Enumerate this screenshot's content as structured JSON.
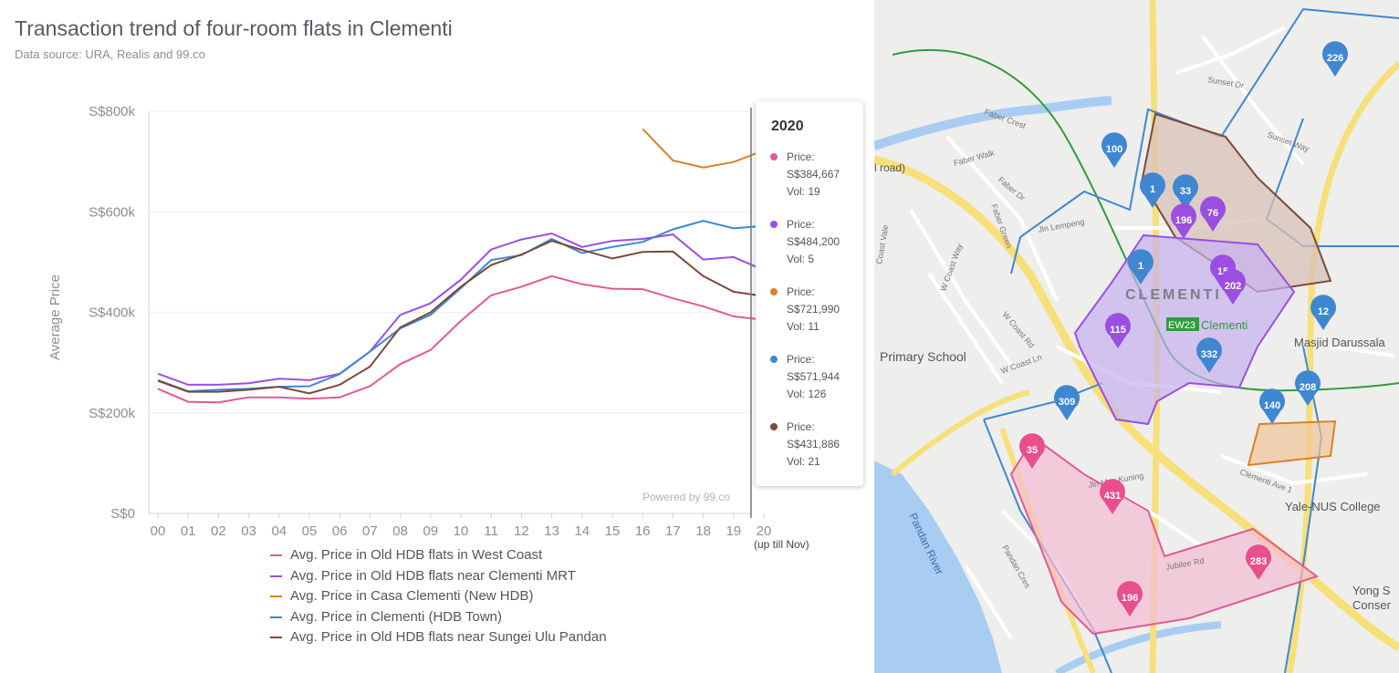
{
  "title": "Transaction trend of four-room flats in Clementi",
  "subtitle": "Data source: URA, Realis and 99.co",
  "chart_data": {
    "type": "line",
    "ylabel": "Average Price",
    "ylim": [
      0,
      800000
    ],
    "y_ticks": [
      "S$0",
      "S$200k",
      "S$400k",
      "S$600k",
      "S$800k"
    ],
    "y_tick_values": [
      0,
      200000,
      400000,
      600000,
      800000
    ],
    "categories": [
      "00",
      "01",
      "02",
      "03",
      "04",
      "05",
      "06",
      "07",
      "08",
      "09",
      "10",
      "11",
      "12",
      "13",
      "14",
      "15",
      "16",
      "17",
      "18",
      "19",
      "20"
    ],
    "x_extra_label": "(up till Nov)",
    "series": [
      {
        "name": "Avg. Price in Old HDB flats in West Coast",
        "color": "#e05a95",
        "values": [
          248000,
          222000,
          221000,
          231000,
          231000,
          228000,
          231000,
          253000,
          297000,
          325000,
          383000,
          434000,
          451000,
          472000,
          456000,
          447000,
          446000,
          428000,
          412000,
          392000,
          385000
        ]
      },
      {
        "name": "Avg. Price in Old HDB flats near Clementi MRT",
        "color": "#9b4fe0",
        "values": [
          278000,
          256000,
          256000,
          259000,
          268000,
          265000,
          278000,
          322000,
          395000,
          418000,
          465000,
          525000,
          545000,
          557000,
          530000,
          542000,
          546000,
          555000,
          505000,
          510000,
          484000
        ]
      },
      {
        "name": "Avg. Price in Casa Clementi (New HDB)",
        "color": "#d98029",
        "values": [
          null,
          null,
          null,
          null,
          null,
          null,
          null,
          null,
          null,
          null,
          null,
          null,
          null,
          null,
          null,
          null,
          765000,
          702000,
          688000,
          699000,
          722000
        ]
      },
      {
        "name": "Avg. Price in Clementi (HDB Town)",
        "color": "#3f87d1",
        "values": [
          265000,
          243000,
          246000,
          248000,
          252000,
          253000,
          277000,
          322000,
          368000,
          395000,
          448000,
          504000,
          514000,
          546000,
          518000,
          530000,
          540000,
          565000,
          582000,
          567000,
          572000
        ]
      },
      {
        "name": "Avg. Price in Old HDB flats near Sungei Ulu Pandan",
        "color": "#7b4a3a",
        "values": [
          264000,
          242000,
          242000,
          246000,
          252000,
          239000,
          256000,
          292000,
          370000,
          400000,
          451000,
          494000,
          515000,
          542000,
          524000,
          507000,
          520000,
          521000,
          472000,
          441000,
          432000
        ]
      }
    ],
    "grid": true,
    "legend_position": "bottom"
  },
  "tooltip": {
    "year": "2020",
    "entries": [
      {
        "price_label": "Price:",
        "price": "S$384,667",
        "vol": "Vol: 19",
        "color": "#e05a95"
      },
      {
        "price_label": "Price:",
        "price": "S$484,200",
        "vol": "Vol: 5",
        "color": "#9b4fe0"
      },
      {
        "price_label": "Price:",
        "price": "S$721,990",
        "vol": "Vol: 11",
        "color": "#d98029"
      },
      {
        "price_label": "Price:",
        "price": "S$571,944",
        "vol": "Vol: 126",
        "color": "#3f87d1"
      },
      {
        "price_label": "Price:",
        "price": "S$431,886",
        "vol": "Vol: 21",
        "color": "#7b4a3a"
      }
    ]
  },
  "powered_by": "Powered by 99.co",
  "map": {
    "labels": {
      "clementi": "CLEMENTI",
      "mrt_code": "EW23",
      "mrt_name": "Clementi",
      "school": "Primary School",
      "masjid": "Masjid Darussala",
      "yale": "Yale-NUS College",
      "yong": "Yong S",
      "conser": "Conser",
      "river": "Pandan River",
      "road_frag": "l road)",
      "faber_crest": "Faber Crest",
      "faber_walk": "Faber Walk",
      "faber_dr": "Faber Dr",
      "faber_green": "Faber Green",
      "jln_lempeng": "Jln Lempeng",
      "w_coast_way": "W Coast Way",
      "w_coast_rd": "W Coast Rd",
      "w_coast_ln": "W Coast Ln",
      "jln_mas_kuning": "Jln Mas Kuning",
      "jubilee_rd": "Jubilee Rd",
      "pandan_cres": "Pandan Cres",
      "sunset_dr": "Sunset Dr",
      "sunset_way": "Sunset Way",
      "clementi_ave1": "Clementi Ave 1",
      "coast_vale": "Coast Vale"
    },
    "markers": [
      {
        "label": "226",
        "color": "#3f87d1"
      },
      {
        "label": "100",
        "color": "#3f87d1"
      },
      {
        "label": "1",
        "color": "#3f87d1"
      },
      {
        "label": "33",
        "color": "#3f87d1"
      },
      {
        "label": "196",
        "color": "#9b4fe0"
      },
      {
        "label": "76",
        "color": "#9b4fe0"
      },
      {
        "label": "1",
        "color": "#3f87d1"
      },
      {
        "label": "15",
        "color": "#9b4fe0"
      },
      {
        "label": "202",
        "color": "#9b4fe0"
      },
      {
        "label": "12",
        "color": "#3f87d1"
      },
      {
        "label": "115",
        "color": "#9b4fe0"
      },
      {
        "label": "332",
        "color": "#3f87d1"
      },
      {
        "label": "208",
        "color": "#3f87d1"
      },
      {
        "label": "140",
        "color": "#3f87d1"
      },
      {
        "label": "309",
        "color": "#3f87d1"
      },
      {
        "label": "35",
        "color": "#e84f8c"
      },
      {
        "label": "431",
        "color": "#e84f8c"
      },
      {
        "label": "283",
        "color": "#e84f8c"
      },
      {
        "label": "196",
        "color": "#e84f8c"
      }
    ]
  }
}
